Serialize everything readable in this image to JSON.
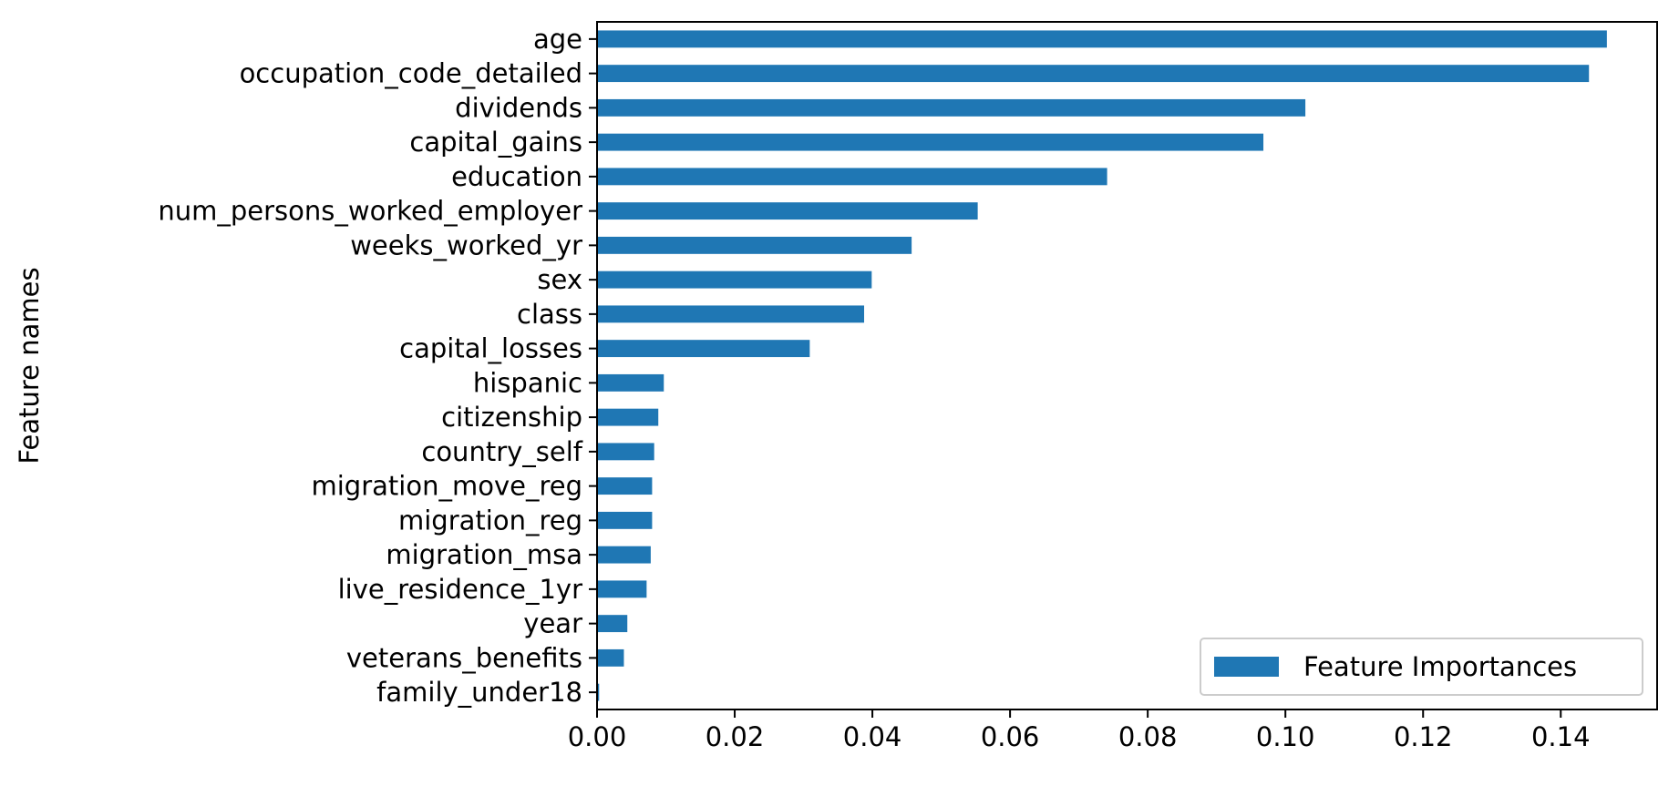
{
  "chart_data": {
    "type": "bar",
    "orientation": "horizontal",
    "title": "",
    "xlabel": "",
    "ylabel": "Feature names",
    "xlim": [
      0,
      0.154
    ],
    "xticks": [
      0.0,
      0.02,
      0.04,
      0.06,
      0.08,
      0.1,
      0.12,
      0.14
    ],
    "xtick_labels": [
      "0.00",
      "0.02",
      "0.04",
      "0.06",
      "0.08",
      "0.10",
      "0.12",
      "0.14"
    ],
    "grid": false,
    "legend_position": "bottom-right",
    "bar_color": "#1f77b4",
    "categories": [
      "age",
      "occupation_code_detailed",
      "dividends",
      "capital_gains",
      "education",
      "num_persons_worked_employer",
      "weeks_worked_yr",
      "sex",
      "class",
      "capital_losses",
      "hispanic",
      "citizenship",
      "country_self",
      "migration_move_reg",
      "migration_reg",
      "migration_msa",
      "live_residence_1yr",
      "year",
      "veterans_benefits",
      "family_under18"
    ],
    "series": [
      {
        "name": "Feature Importances",
        "values": [
          0.1467,
          0.1441,
          0.1029,
          0.0968,
          0.0741,
          0.0553,
          0.0457,
          0.0399,
          0.0388,
          0.0309,
          0.0097,
          0.0089,
          0.0083,
          0.008,
          0.008,
          0.0078,
          0.0072,
          0.0044,
          0.0039,
          0.0003
        ]
      }
    ]
  }
}
